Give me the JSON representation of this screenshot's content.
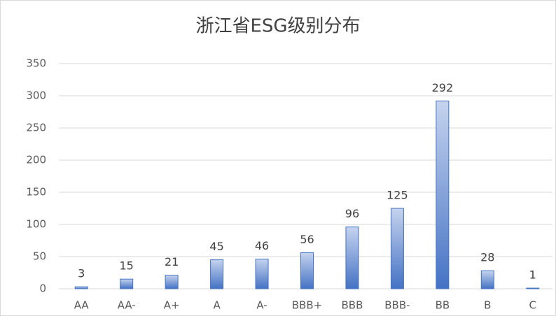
{
  "chart_data": {
    "type": "bar",
    "title": "浙江省ESG级别分布",
    "categories": [
      "AA",
      "AA-",
      "A+",
      "A",
      "A-",
      "BBB+",
      "BBB",
      "BBB-",
      "BB",
      "B",
      "C"
    ],
    "values": [
      3,
      15,
      21,
      45,
      46,
      56,
      96,
      125,
      292,
      28,
      1
    ],
    "color": "#4472c4",
    "ylim": [
      0,
      350
    ],
    "yticks": [
      0,
      50,
      100,
      150,
      200,
      250,
      300,
      350
    ],
    "grid": true
  }
}
